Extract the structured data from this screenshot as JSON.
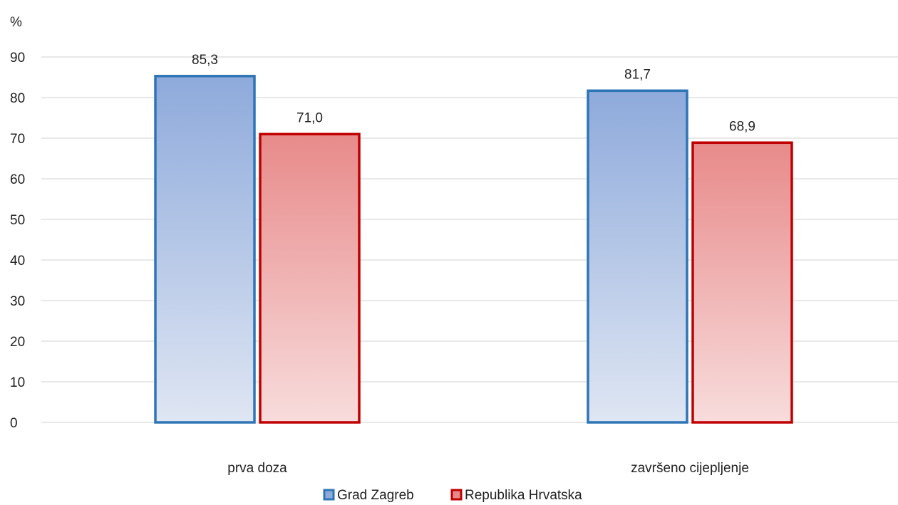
{
  "chart_data": {
    "type": "bar",
    "ylabel": "%",
    "categories": [
      "prva doza",
      "završeno cijepljenje"
    ],
    "series": [
      {
        "name": "Grad Zagreb",
        "values": [
          85.3,
          81.7
        ],
        "labels": [
          "85,3",
          "81,7"
        ],
        "stroke": "#2e75b6",
        "fill_top": "#8eaadb",
        "fill_bottom": "#dfe6f3"
      },
      {
        "name": "Republika Hrvatska",
        "values": [
          71.0,
          68.9
        ],
        "labels": [
          "71,0",
          "68,9"
        ],
        "stroke": "#c00000",
        "fill_top": "#e88a8a",
        "fill_bottom": "#f8dcdc"
      }
    ],
    "ylim": [
      0,
      90
    ],
    "yticks": [
      "0",
      "10",
      "20",
      "30",
      "40",
      "50",
      "60",
      "70",
      "80",
      "90"
    ],
    "grid": true,
    "legend_position": "bottom"
  }
}
